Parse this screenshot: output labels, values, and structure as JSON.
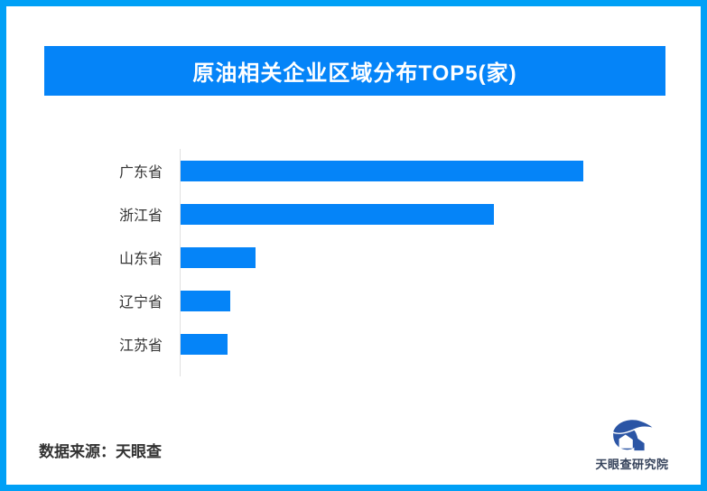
{
  "colors": {
    "background": "#ffffff",
    "border": "#00a0f6",
    "banner": "#0584f8",
    "bar": "#0584f8",
    "axis_line": "#e0e0e0",
    "text": "#333333",
    "title_text": "#ffffff",
    "logo_mark": "#2b55a5",
    "logo_text": "#35425b"
  },
  "header": {
    "title": "原油相关企业区域分布TOP5(家)"
  },
  "chart_data": {
    "type": "bar",
    "orientation": "horizontal",
    "title": "原油相关企业区域分布TOP5(家)",
    "categories": [
      "广东省",
      "浙江省",
      "山东省",
      "辽宁省",
      "江苏省"
    ],
    "values": [
      445,
      346,
      83,
      55,
      52
    ],
    "value_labels_shown": false,
    "values_note": "chart shows no numeric labels; values are relative magnitudes estimated from bar lengths",
    "xlabel": "",
    "ylabel": "",
    "grid": false,
    "legend": false,
    "bar_color": "#0584f8",
    "axis_line_color": "#e0e0e0"
  },
  "footer": {
    "source_label": "数据来源：天眼查",
    "logo_text": "天眼查研究院"
  }
}
